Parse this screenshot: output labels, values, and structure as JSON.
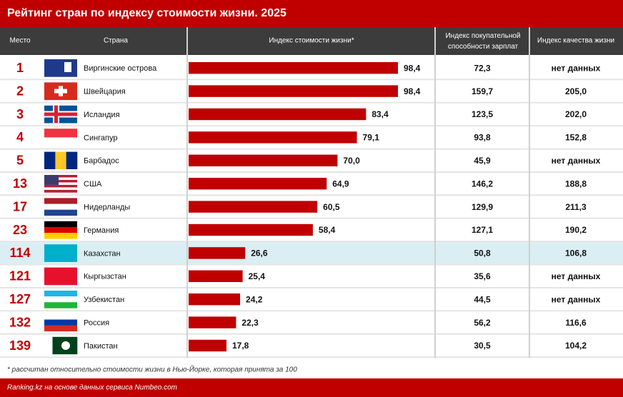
{
  "chart_data": {
    "type": "bar",
    "title": "Рейтинг стран по индексу стоимости жизни. 2025",
    "columns": [
      "Место",
      "Страна",
      "Индекс стоимости жизни*",
      "Индекс покупательной способности зарплат",
      "Индекс качества жизни"
    ],
    "ranks": [
      "1",
      "2",
      "3",
      "4",
      "5",
      "13",
      "17",
      "23",
      "114",
      "121",
      "127",
      "132",
      "139"
    ],
    "categories": [
      "Виргинские острова",
      "Швейцария",
      "Исландия",
      "Сингапур",
      "Барбадос",
      "США",
      "Нидерланды",
      "Германия",
      "Казахстан",
      "Кыргызстан",
      "Узбекистан",
      "Россия",
      "Пакистан"
    ],
    "values": [
      98.4,
      98.4,
      83.4,
      79.1,
      70.0,
      64.9,
      60.5,
      58.4,
      26.6,
      25.4,
      24.2,
      22.3,
      17.8
    ],
    "value_labels": [
      "98,4",
      "98,4",
      "83,4",
      "79,1",
      "70,0",
      "64,9",
      "60,5",
      "58,4",
      "26,6",
      "25,4",
      "24,2",
      "22,3",
      "17,8"
    ],
    "color": "#c00000",
    "purchasing_power": [
      "72,3",
      "159,7",
      "123,5",
      "93,8",
      "45,9",
      "146,2",
      "129,9",
      "127,1",
      "50,8",
      "35,6",
      "44,5",
      "56,2",
      "30,5"
    ],
    "quality_of_life": [
      "нет данных",
      "205,0",
      "202,0",
      "152,8",
      "нет данных",
      "188,8",
      "211,3",
      "190,2",
      "106,8",
      "нет данных",
      "нет данных",
      "116,6",
      "104,2"
    ],
    "footnote": "* рассчитан относительно стоимости жизни в Нью-Йорке, которая принята за 100",
    "source": "Ranking.kz на основе данных сервиса Numbeo.com"
  }
}
